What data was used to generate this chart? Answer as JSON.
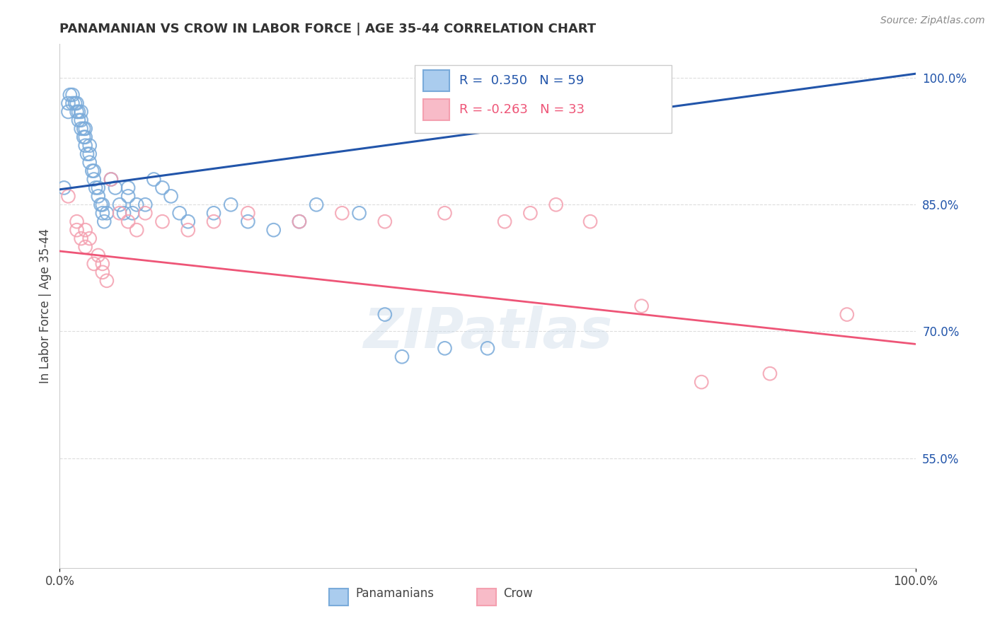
{
  "title": "PANAMANIAN VS CROW IN LABOR FORCE | AGE 35-44 CORRELATION CHART",
  "source": "Source: ZipAtlas.com",
  "ylabel": "In Labor Force | Age 35-44",
  "xlim": [
    0.0,
    1.0
  ],
  "ylim": [
    0.42,
    1.04
  ],
  "yticks": [
    0.55,
    0.7,
    0.85,
    1.0
  ],
  "ytick_labels": [
    "55.0%",
    "70.0%",
    "85.0%",
    "100.0%"
  ],
  "background_color": "#ffffff",
  "grid_color": "#dddddd",
  "blue_color": "#7aabda",
  "pink_color": "#f4a0b0",
  "blue_line_color": "#2255aa",
  "pink_line_color": "#ee5577",
  "legend_R_blue": "0.350",
  "legend_N_blue": "59",
  "legend_R_pink": "-0.263",
  "legend_N_pink": "33",
  "legend_label_blue": "Panamanians",
  "legend_label_pink": "Crow",
  "watermark": "ZIPatlas",
  "blue_x": [
    0.005,
    0.01,
    0.01,
    0.012,
    0.015,
    0.015,
    0.018,
    0.02,
    0.02,
    0.022,
    0.022,
    0.025,
    0.025,
    0.025,
    0.028,
    0.028,
    0.03,
    0.03,
    0.03,
    0.032,
    0.035,
    0.035,
    0.035,
    0.038,
    0.04,
    0.04,
    0.042,
    0.045,
    0.045,
    0.048,
    0.05,
    0.05,
    0.052,
    0.055,
    0.06,
    0.065,
    0.07,
    0.075,
    0.08,
    0.08,
    0.085,
    0.09,
    0.1,
    0.11,
    0.12,
    0.13,
    0.14,
    0.15,
    0.18,
    0.2,
    0.22,
    0.25,
    0.28,
    0.3,
    0.35,
    0.38,
    0.4,
    0.45,
    0.5
  ],
  "blue_y": [
    0.87,
    0.96,
    0.97,
    0.98,
    0.97,
    0.98,
    0.97,
    0.96,
    0.97,
    0.95,
    0.96,
    0.94,
    0.95,
    0.96,
    0.93,
    0.94,
    0.92,
    0.93,
    0.94,
    0.91,
    0.9,
    0.91,
    0.92,
    0.89,
    0.88,
    0.89,
    0.87,
    0.86,
    0.87,
    0.85,
    0.84,
    0.85,
    0.83,
    0.84,
    0.88,
    0.87,
    0.85,
    0.84,
    0.86,
    0.87,
    0.84,
    0.85,
    0.85,
    0.88,
    0.87,
    0.86,
    0.84,
    0.83,
    0.84,
    0.85,
    0.83,
    0.82,
    0.83,
    0.85,
    0.84,
    0.72,
    0.67,
    0.68,
    0.68
  ],
  "pink_x": [
    0.01,
    0.02,
    0.02,
    0.025,
    0.03,
    0.03,
    0.035,
    0.04,
    0.045,
    0.05,
    0.05,
    0.055,
    0.06,
    0.07,
    0.08,
    0.09,
    0.1,
    0.12,
    0.15,
    0.18,
    0.22,
    0.28,
    0.33,
    0.38,
    0.45,
    0.52,
    0.55,
    0.58,
    0.62,
    0.68,
    0.75,
    0.83,
    0.92
  ],
  "pink_y": [
    0.86,
    0.83,
    0.82,
    0.81,
    0.8,
    0.82,
    0.81,
    0.78,
    0.79,
    0.77,
    0.78,
    0.76,
    0.88,
    0.84,
    0.83,
    0.82,
    0.84,
    0.83,
    0.82,
    0.83,
    0.84,
    0.83,
    0.84,
    0.83,
    0.84,
    0.83,
    0.84,
    0.85,
    0.83,
    0.73,
    0.64,
    0.65,
    0.72
  ],
  "blue_trend_y_start": 0.868,
  "blue_trend_y_end": 1.005,
  "pink_trend_y_start": 0.795,
  "pink_trend_y_end": 0.685
}
